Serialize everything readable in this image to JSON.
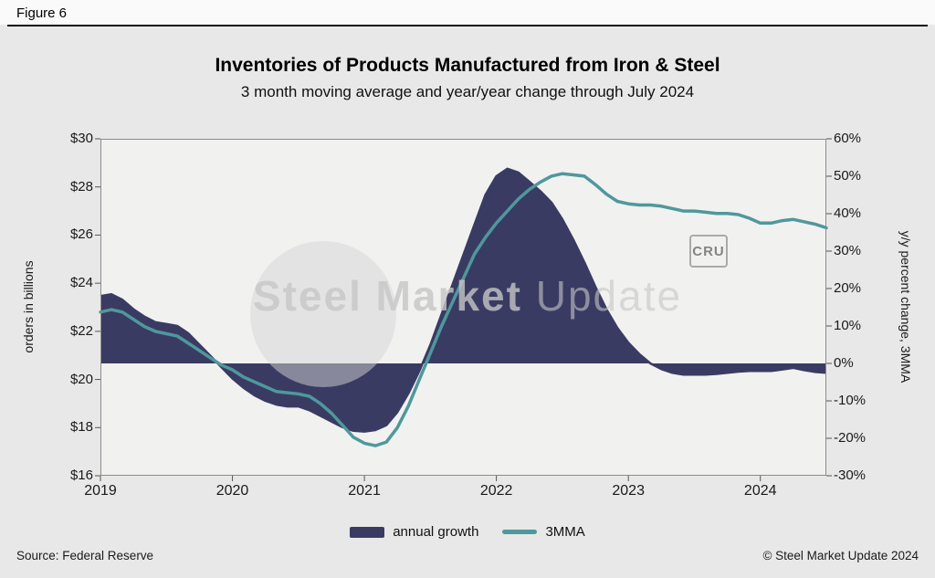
{
  "figure_label": "Figure 6",
  "title": "Inventories of Products Manufactured from Iron & Steel",
  "subtitle": "3 month moving average and year/year change through July 2024",
  "footer": {
    "source": "Source: Federal Reserve",
    "copyright": "© Steel Market Update 2024"
  },
  "watermark": {
    "bold": "Steel Market",
    "light": "Update",
    "badge": "CRU"
  },
  "legend": {
    "items": [
      {
        "label": "annual growth",
        "type": "area",
        "color": "#3a3b63"
      },
      {
        "label": "3MMA",
        "type": "line",
        "color": "#4f989c"
      }
    ]
  },
  "colors": {
    "background": "#e8e8e8",
    "plot_background": "#f1f1f0",
    "plot_border": "#8c8c8c",
    "navy": "#3a3b63",
    "teal": "#4f989c"
  },
  "chart_data": {
    "type": "line+area",
    "frequency": "monthly",
    "period_start": "2019-01",
    "period_end": "2024-07",
    "title": "Inventories of Products Manufactured from Iron & Steel",
    "subtitle": "3 month moving average and year/year change through July 2024",
    "grid": false,
    "legend_position": "bottom",
    "x_ticks": [
      "2019",
      "2020",
      "2021",
      "2022",
      "2023",
      "2024"
    ],
    "x_tick_years": [
      2019,
      2020,
      2021,
      2022,
      2023,
      2024
    ],
    "left_axis": {
      "label": "orders in billions",
      "min": 16,
      "max": 30,
      "tick_values": [
        30,
        28,
        26,
        24,
        22,
        20,
        18,
        16
      ],
      "tick_labels": [
        "$30",
        "$28",
        "$26",
        "$24",
        "$22",
        "$20",
        "$18",
        "$16"
      ]
    },
    "right_axis": {
      "label": "y/y percent change, 3MMA",
      "min": -30,
      "max": 60,
      "tick_values": [
        60,
        50,
        40,
        30,
        20,
        10,
        0,
        -10,
        -20,
        -30
      ],
      "tick_labels": [
        "60%",
        "50%",
        "40%",
        "30%",
        "20%",
        "10%",
        "0%",
        "-10%",
        "-20%",
        "-30%"
      ]
    },
    "series": [
      {
        "name": "annual growth",
        "axis": "right",
        "type": "area",
        "unit": "% y/y",
        "color": "#3a3b63",
        "values": [
          18,
          18.5,
          17,
          14.5,
          12.5,
          11,
          10.5,
          10,
          8,
          5,
          2,
          -1,
          -4,
          -6.5,
          -8.5,
          -10,
          -11,
          -11.5,
          -11.5,
          -12.5,
          -14,
          -15.5,
          -17,
          -18,
          -18.2,
          -17.8,
          -16.5,
          -13,
          -8,
          -2,
          5,
          13,
          21,
          29,
          37,
          45,
          50,
          52,
          51,
          48.5,
          46,
          43,
          38.5,
          33,
          27,
          20.5,
          14.5,
          9.5,
          5.5,
          2.5,
          0,
          -1.5,
          -2.5,
          -3,
          -3,
          -3,
          -2.8,
          -2.5,
          -2.2,
          -2,
          -2,
          -2,
          -1.6,
          -1.2,
          -1.8,
          -2.3,
          -2.5
        ]
      },
      {
        "name": "3MMA",
        "axis": "left",
        "type": "line",
        "unit": "$ billions",
        "color": "#4f989c",
        "values": [
          22.8,
          22.9,
          22.8,
          22.5,
          22.2,
          22.0,
          21.9,
          21.8,
          21.5,
          21.2,
          20.9,
          20.6,
          20.4,
          20.1,
          19.9,
          19.7,
          19.5,
          19.45,
          19.4,
          19.3,
          19.0,
          18.6,
          18.1,
          17.6,
          17.35,
          17.25,
          17.4,
          18.0,
          18.9,
          20.0,
          21.1,
          22.2,
          23.2,
          24.2,
          25.2,
          25.9,
          26.5,
          27.0,
          27.5,
          27.9,
          28.2,
          28.45,
          28.55,
          28.5,
          28.45,
          28.1,
          27.7,
          27.4,
          27.3,
          27.25,
          27.25,
          27.2,
          27.1,
          27.0,
          27.0,
          26.95,
          26.9,
          26.9,
          26.85,
          26.7,
          26.5,
          26.5,
          26.6,
          26.65,
          26.55,
          26.45,
          26.3
        ]
      }
    ]
  }
}
